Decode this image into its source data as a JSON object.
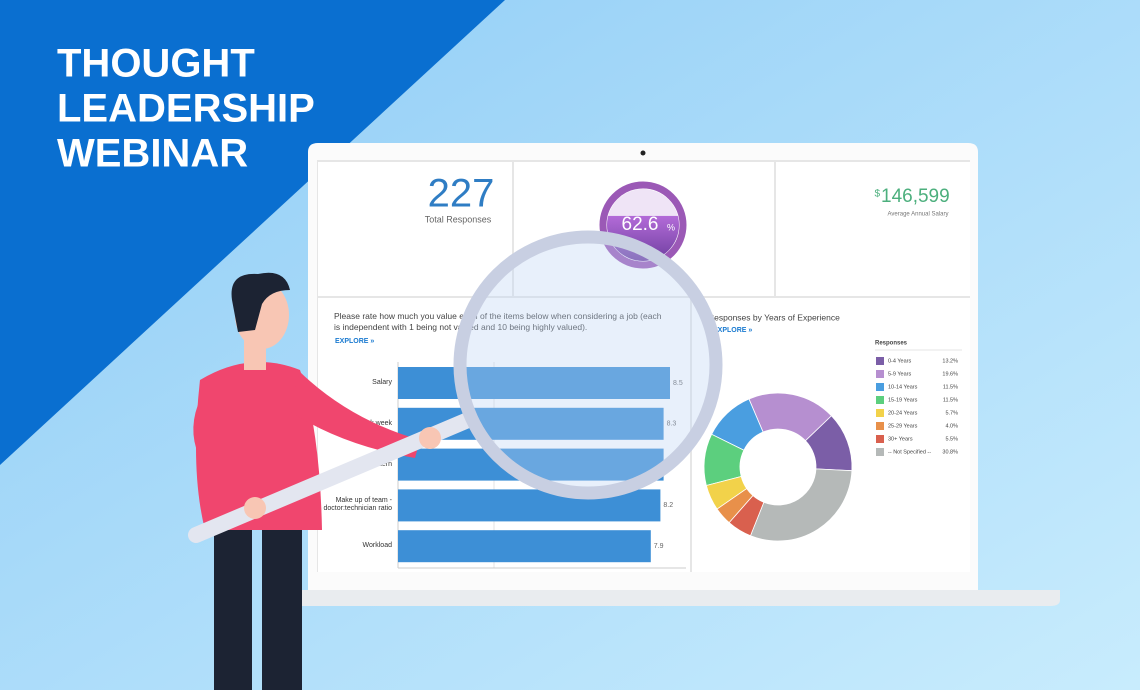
{
  "header": {
    "title_lines": [
      "THOUGHT",
      "LEADERSHIP",
      "WEBINAR"
    ]
  },
  "kpis": {
    "responses": {
      "value": "227",
      "label": "Total Responses"
    },
    "satisfaction": {
      "value": 62.6,
      "unit": "%"
    },
    "salary": {
      "currency": "$",
      "value": "146,599",
      "label": "Average Annual Salary"
    }
  },
  "chart_data": [
    {
      "type": "bar",
      "orientation": "horizontal",
      "title": "Please rate how much you value each of the items below when considering a job (each is independent with 1 being not valued and 10 being highly valued).",
      "link": "EXPLORE »",
      "categories": [
        "Salary",
        "Length of work week",
        "Shift pattern",
        "Make up of team - doctor:technician ratio",
        "Workload"
      ],
      "values": [
        8.5,
        8.3,
        8.3,
        8.2,
        7.9
      ],
      "color": "#3d8fd6",
      "xlim": [
        0,
        9
      ]
    },
    {
      "type": "donut",
      "title": "Responses by Years of Experience",
      "link": "EXPLORE »",
      "legend_title": "Responses",
      "categories": [
        "0-4 Years",
        "5-9 Years",
        "10-14 Years",
        "15-19 Years",
        "20-24 Years",
        "25-29 Years",
        "30+ Years",
        "-- Not Specified --"
      ],
      "values": [
        13.2,
        19.6,
        11.5,
        11.5,
        5.7,
        4.0,
        5.5,
        30.8
      ],
      "value_labels": [
        "13.2%",
        "19.6%",
        "11.5%",
        "11.5%",
        "5.7%",
        "4.0%",
        "5.5%",
        "30.8%"
      ],
      "colors": [
        "#7b5ea7",
        "#b68fd0",
        "#4a9ee0",
        "#5ccf7e",
        "#f2d24a",
        "#e8904a",
        "#d9604e",
        "#b5b9b8"
      ]
    }
  ]
}
